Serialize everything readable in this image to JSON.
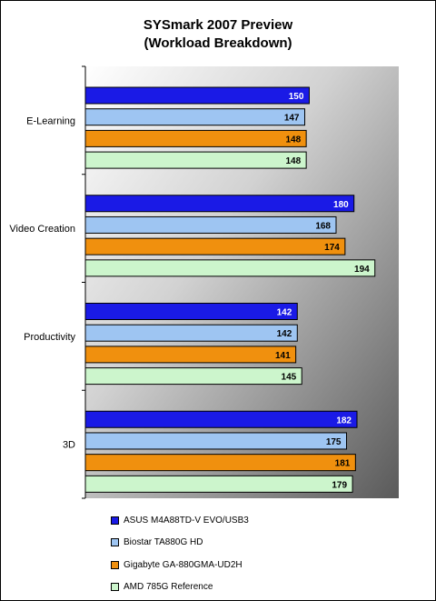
{
  "chart_data": {
    "type": "bar",
    "orientation": "horizontal",
    "title": "SYSmark 2007 Preview",
    "subtitle": "(Workload Breakdown)",
    "categories": [
      "E-Learning",
      "Video Creation",
      "Productivity",
      "3D"
    ],
    "series": [
      {
        "name": "ASUS M4A88TD-V EVO/USB3",
        "color": "#1a1ae6",
        "values": [
          150,
          180,
          142,
          182
        ]
      },
      {
        "name": "Biostar TA880G HD",
        "color": "#9ec5f2",
        "values": [
          147,
          168,
          142,
          175
        ]
      },
      {
        "name": "Gigabyte GA-880GMA-UD2H",
        "color": "#f0900e",
        "values": [
          148,
          174,
          141,
          181
        ]
      },
      {
        "name": "AMD 785G Reference",
        "color": "#ccf5cc",
        "values": [
          148,
          194,
          145,
          179
        ]
      }
    ],
    "xlim": [
      0,
      210
    ],
    "grid": false,
    "legend_position": "bottom"
  }
}
